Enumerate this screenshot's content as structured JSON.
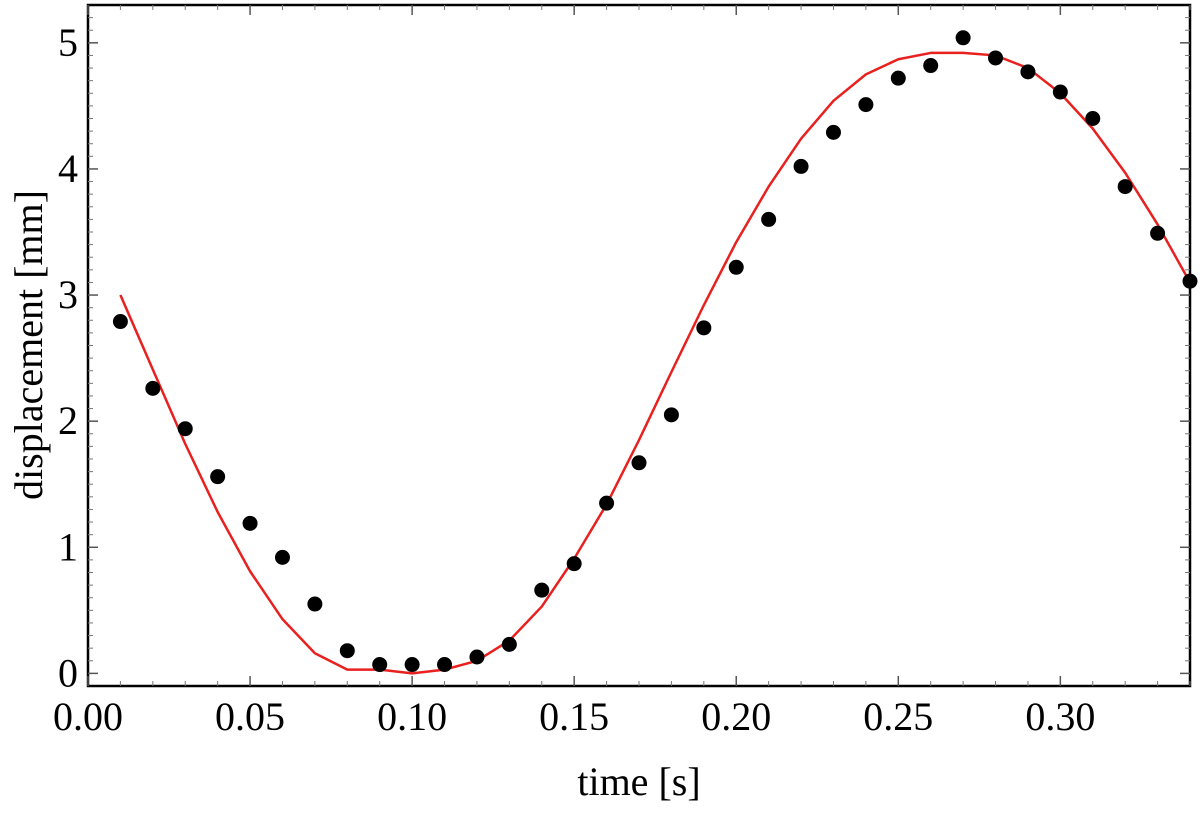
{
  "chart_data": {
    "type": "scatter",
    "xlabel": "time [s]",
    "ylabel": "displacement [mm]",
    "xlim": [
      0.0,
      0.34
    ],
    "ylim": [
      -0.1,
      5.3
    ],
    "x_ticks": [
      "0.00",
      "0.05",
      "0.10",
      "0.15",
      "0.20",
      "0.25",
      "0.30"
    ],
    "y_ticks": [
      "0",
      "1",
      "2",
      "3",
      "4",
      "5"
    ],
    "grid": false,
    "colors": {
      "points": "#000000",
      "fit": "#e8211f",
      "frame": "#000000"
    },
    "series": [
      {
        "type": "scatter",
        "x": [
          0.01,
          0.02,
          0.03,
          0.04,
          0.05,
          0.06,
          0.07,
          0.08,
          0.09,
          0.1,
          0.11,
          0.12,
          0.13,
          0.14,
          0.15,
          0.16,
          0.17,
          0.18,
          0.19,
          0.2,
          0.21,
          0.22,
          0.23,
          0.24,
          0.25,
          0.26,
          0.27,
          0.28,
          0.29,
          0.3,
          0.31,
          0.32,
          0.33,
          0.34
        ],
        "y": [
          2.79,
          2.26,
          1.94,
          1.56,
          1.19,
          0.92,
          0.55,
          0.18,
          0.07,
          0.07,
          0.07,
          0.13,
          0.23,
          0.66,
          0.87,
          1.35,
          1.67,
          2.05,
          2.74,
          3.22,
          3.6,
          4.02,
          4.29,
          4.51,
          4.72,
          4.82,
          5.04,
          4.88,
          4.77,
          4.61,
          4.4,
          3.86,
          3.49,
          3.11
        ]
      },
      {
        "type": "line",
        "x": [
          0.01,
          0.02,
          0.03,
          0.04,
          0.05,
          0.06,
          0.07,
          0.08,
          0.09,
          0.1,
          0.11,
          0.12,
          0.13,
          0.14,
          0.15,
          0.16,
          0.17,
          0.18,
          0.19,
          0.2,
          0.21,
          0.22,
          0.23,
          0.24,
          0.25,
          0.26,
          0.27,
          0.28,
          0.29,
          0.3,
          0.31,
          0.32,
          0.33,
          0.34
        ],
        "y": [
          3.0,
          2.41,
          1.82,
          1.28,
          0.81,
          0.43,
          0.16,
          0.03,
          0.03,
          0.0,
          0.03,
          0.1,
          0.26,
          0.53,
          0.91,
          1.34,
          1.85,
          2.39,
          2.92,
          3.42,
          3.86,
          4.24,
          4.54,
          4.75,
          4.87,
          4.92,
          4.92,
          4.9,
          4.8,
          4.6,
          4.32,
          3.97,
          3.56,
          3.1
        ]
      }
    ]
  }
}
